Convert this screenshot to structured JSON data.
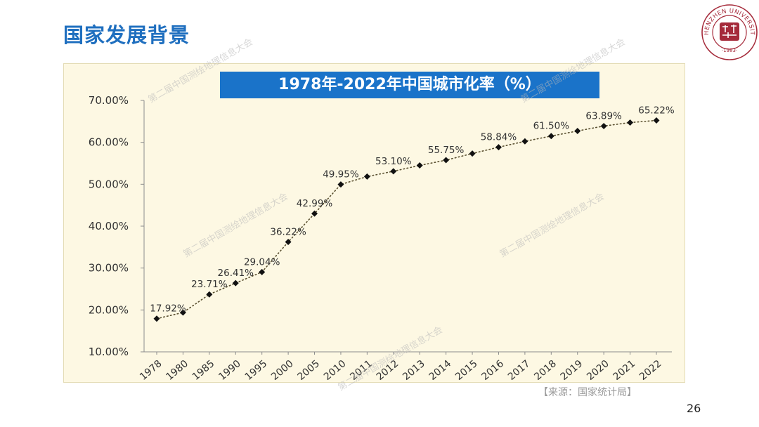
{
  "slide": {
    "title": "国家发展背景",
    "source": "【来源：国家统计局】",
    "page_number": "26",
    "watermark": "第二届中国测绘地理信息大会"
  },
  "logo": {
    "text": "SHENZHEN UNIVERSITY",
    "year": "·1983·",
    "color": "#a52a3a"
  },
  "colors": {
    "title": "#1f6fbf",
    "chart_title_bg": "#1a73c9",
    "panel_bg": "#fdf8e3",
    "marker": "#111111"
  },
  "chart_data": {
    "type": "line",
    "title": "1978年-2022年中国城市化率（%）",
    "xlabel": "",
    "ylabel": "",
    "categories": [
      "1978",
      "1980",
      "1985",
      "1990",
      "1995",
      "2000",
      "2005",
      "2010",
      "2011",
      "2012",
      "2013",
      "2014",
      "2015",
      "2016",
      "2017",
      "2018",
      "2019",
      "2020",
      "2021",
      "2022"
    ],
    "series": [
      {
        "values": [
          17.92,
          19.39,
          23.71,
          26.41,
          29.04,
          36.22,
          42.99,
          49.95,
          51.83,
          53.1,
          54.49,
          55.75,
          57.33,
          58.84,
          60.24,
          61.5,
          62.71,
          63.89,
          64.72,
          65.22
        ]
      }
    ],
    "data_labels": [
      {
        "category": "1978",
        "text": "17.92%"
      },
      {
        "category": "1985",
        "text": "23.71%"
      },
      {
        "category": "1990",
        "text": "26.41%"
      },
      {
        "category": "1995",
        "text": "29.04%"
      },
      {
        "category": "2000",
        "text": "36.22%"
      },
      {
        "category": "2005",
        "text": "42.99%"
      },
      {
        "category": "2010",
        "text": "49.95%"
      },
      {
        "category": "2012",
        "text": "53.10%"
      },
      {
        "category": "2014",
        "text": "55.75%"
      },
      {
        "category": "2016",
        "text": "58.84%"
      },
      {
        "category": "2018",
        "text": "61.50%"
      },
      {
        "category": "2020",
        "text": "63.89%"
      },
      {
        "category": "2022",
        "text": "65.22%"
      }
    ],
    "yticks": [
      10,
      20,
      30,
      40,
      50,
      60,
      70
    ],
    "ytick_labels": [
      "10.00%",
      "20.00%",
      "30.00%",
      "40.00%",
      "50.00%",
      "60.00%",
      "70.00%"
    ],
    "ylim": [
      10,
      70
    ],
    "grid": false,
    "legend": "none",
    "line_style": "dotted"
  }
}
